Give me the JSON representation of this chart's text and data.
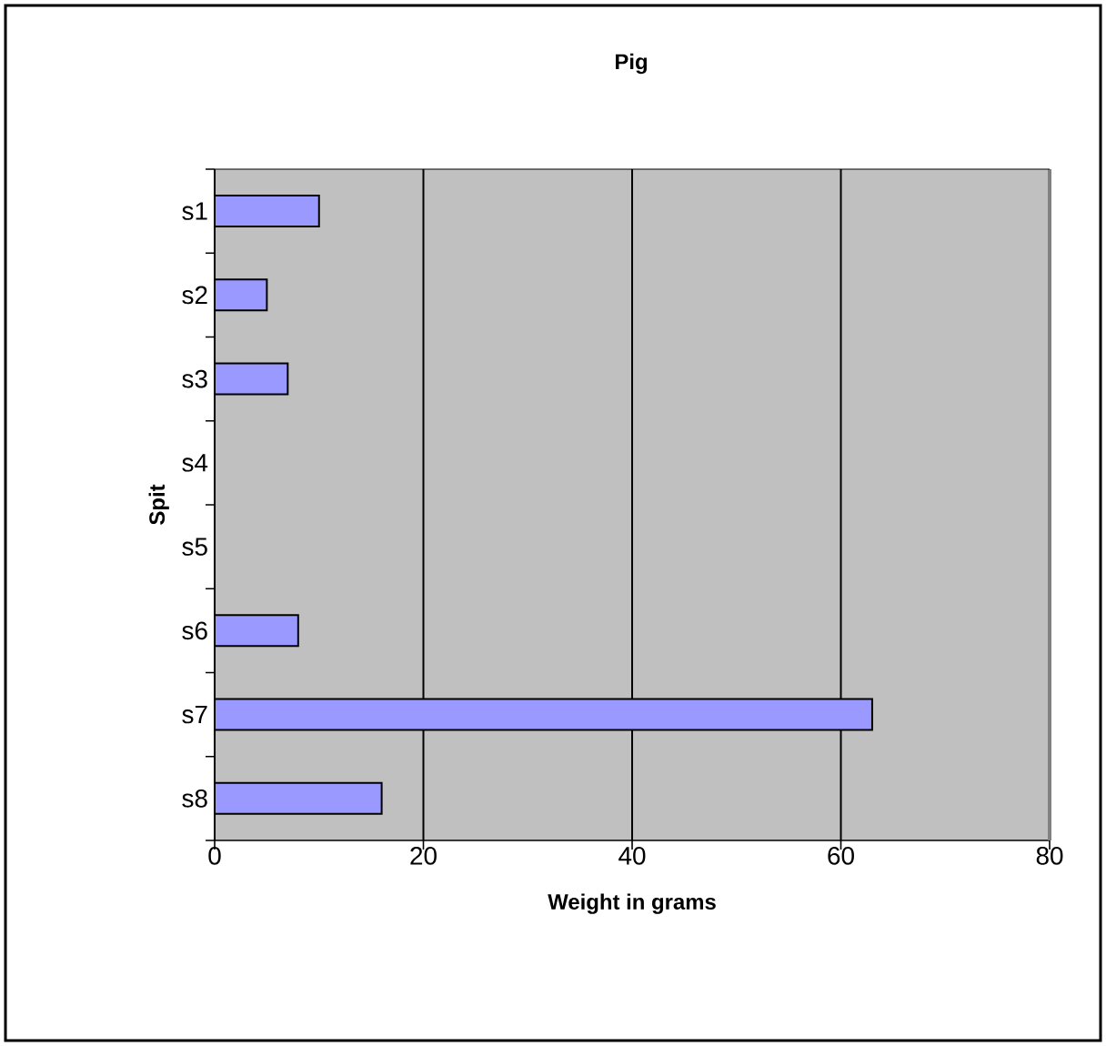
{
  "chart_data": {
    "type": "bar",
    "orientation": "horizontal",
    "title": "Pig",
    "xlabel": "Weight in grams",
    "ylabel": "Spit",
    "categories": [
      "s1",
      "s2",
      "s3",
      "s4",
      "s5",
      "s6",
      "s7",
      "s8"
    ],
    "values": [
      10,
      5,
      7,
      null,
      null,
      8,
      63,
      16
    ],
    "color": "#9999ff",
    "xlim": [
      0,
      80
    ],
    "xticks": [
      0,
      20,
      40,
      60,
      80
    ],
    "grid": "x"
  }
}
